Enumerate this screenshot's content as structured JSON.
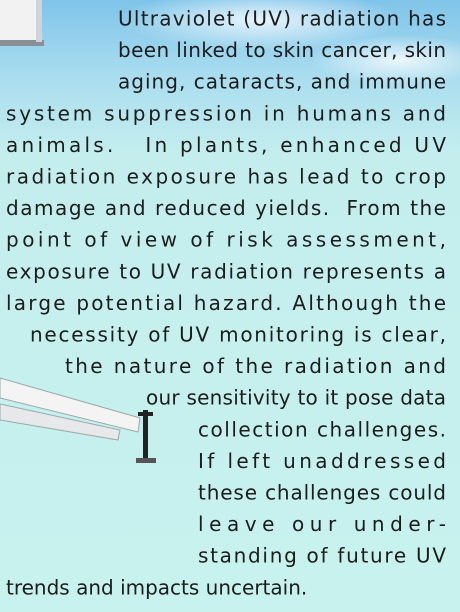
{
  "paragraph": {
    "lines": [
      "Ultraviolet (UV) radiation has",
      "been linked to skin cancer, skin",
      "aging, cataracts, and immune",
      "system suppression in humans and",
      "animals.   In plants, enhanced UV",
      "radiation exposure has lead to crop",
      "damage and reduced yields.  From the",
      "point of view of risk assessment,",
      "exposure to UV radiation represents a",
      "large potential hazard. Although the",
      "necessity of UV monitoring is clear,",
      "the nature of the radiation and",
      "our sensitivity to it pose data",
      "collection challenges.",
      "If left unaddressed",
      "these challenges could",
      "leave our under-",
      "standing of future UV",
      "trends and impacts uncertain."
    ]
  }
}
